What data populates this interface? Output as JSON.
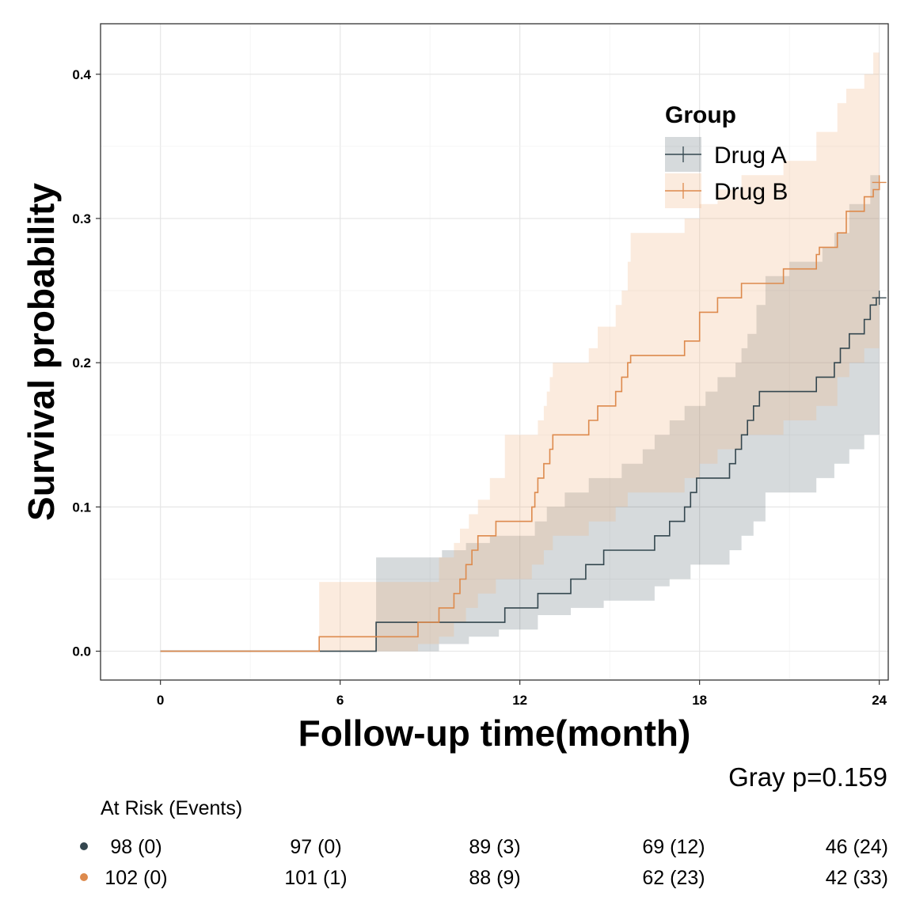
{
  "chart_data": {
    "type": "line",
    "xlabel": "Follow-up time(month)",
    "ylabel": "Survival probability",
    "xlim": [
      -2,
      24.3
    ],
    "ylim": [
      -0.02,
      0.435
    ],
    "x_ticks": [
      0,
      6,
      12,
      18,
      24
    ],
    "y_ticks": [
      0.0,
      0.1,
      0.2,
      0.3,
      0.4
    ],
    "y_tick_labels": [
      "0.0",
      "0.1",
      "0.2",
      "0.3",
      "0.4"
    ],
    "grid": true,
    "legend": {
      "title": "Group",
      "position": "top-right",
      "entries": [
        "Drug A",
        "Drug B"
      ]
    },
    "annotation": "Gray p=0.159",
    "series": [
      {
        "name": "Drug A",
        "color": "#34474F",
        "band_color": "#34474F",
        "steps": [
          [
            0,
            0
          ],
          [
            7.2,
            0.02
          ],
          [
            11.5,
            0.03
          ],
          [
            12.6,
            0.04
          ],
          [
            13.7,
            0.05
          ],
          [
            14.2,
            0.06
          ],
          [
            14.8,
            0.07
          ],
          [
            16.5,
            0.08
          ],
          [
            17.0,
            0.09
          ],
          [
            17.5,
            0.1
          ],
          [
            17.7,
            0.11
          ],
          [
            17.9,
            0.12
          ],
          [
            19.0,
            0.13
          ],
          [
            19.2,
            0.14
          ],
          [
            19.4,
            0.15
          ],
          [
            19.6,
            0.16
          ],
          [
            19.8,
            0.17
          ],
          [
            20.0,
            0.18
          ],
          [
            21.9,
            0.19
          ],
          [
            22.5,
            0.2
          ],
          [
            22.7,
            0.21
          ],
          [
            23.0,
            0.22
          ],
          [
            23.5,
            0.23
          ],
          [
            23.7,
            0.24
          ],
          [
            23.9,
            0.245
          ],
          [
            24.0,
            0.245
          ]
        ],
        "lower": [
          [
            0,
            0
          ],
          [
            7.2,
            0.0
          ],
          [
            9.3,
            0.005
          ],
          [
            10.3,
            0.01
          ],
          [
            11.3,
            0.015
          ],
          [
            12.6,
            0.025
          ],
          [
            13.7,
            0.03
          ],
          [
            14.8,
            0.035
          ],
          [
            16.5,
            0.045
          ],
          [
            17.0,
            0.05
          ],
          [
            17.7,
            0.06
          ],
          [
            19.0,
            0.07
          ],
          [
            19.4,
            0.08
          ],
          [
            19.8,
            0.09
          ],
          [
            20.2,
            0.11
          ],
          [
            21.9,
            0.12
          ],
          [
            22.5,
            0.13
          ],
          [
            23.0,
            0.14
          ],
          [
            23.5,
            0.15
          ],
          [
            24.0,
            0.16
          ]
        ],
        "upper": [
          [
            0,
            0
          ],
          [
            7.2,
            0.065
          ],
          [
            8.6,
            0.065
          ],
          [
            9.4,
            0.07
          ],
          [
            10.2,
            0.075
          ],
          [
            11.0,
            0.08
          ],
          [
            12.5,
            0.09
          ],
          [
            12.9,
            0.1
          ],
          [
            13.5,
            0.11
          ],
          [
            14.3,
            0.12
          ],
          [
            15.4,
            0.13
          ],
          [
            16.1,
            0.14
          ],
          [
            16.5,
            0.15
          ],
          [
            17.0,
            0.16
          ],
          [
            17.5,
            0.17
          ],
          [
            18.2,
            0.18
          ],
          [
            18.6,
            0.19
          ],
          [
            19.2,
            0.2
          ],
          [
            19.4,
            0.21
          ],
          [
            19.6,
            0.22
          ],
          [
            19.9,
            0.24
          ],
          [
            20.2,
            0.26
          ],
          [
            21.0,
            0.27
          ],
          [
            22.1,
            0.28
          ],
          [
            22.5,
            0.29
          ],
          [
            23.0,
            0.31
          ],
          [
            23.7,
            0.33
          ],
          [
            24.0,
            0.335
          ]
        ]
      },
      {
        "name": "Drug B",
        "color": "#DD8A4D",
        "band_color": "#EFB68A",
        "steps": [
          [
            0,
            0
          ],
          [
            5.3,
            0.01
          ],
          [
            7.2,
            0.01
          ],
          [
            8.6,
            0.02
          ],
          [
            9.3,
            0.03
          ],
          [
            9.8,
            0.04
          ],
          [
            10.0,
            0.05
          ],
          [
            10.2,
            0.06
          ],
          [
            10.4,
            0.07
          ],
          [
            10.6,
            0.08
          ],
          [
            11.2,
            0.09
          ],
          [
            12.4,
            0.1
          ],
          [
            12.5,
            0.11
          ],
          [
            12.6,
            0.12
          ],
          [
            12.8,
            0.13
          ],
          [
            13.0,
            0.14
          ],
          [
            13.1,
            0.15
          ],
          [
            14.3,
            0.16
          ],
          [
            14.6,
            0.17
          ],
          [
            15.2,
            0.18
          ],
          [
            15.4,
            0.19
          ],
          [
            15.6,
            0.2
          ],
          [
            15.7,
            0.205
          ],
          [
            17.5,
            0.215
          ],
          [
            18.0,
            0.235
          ],
          [
            18.6,
            0.245
          ],
          [
            19.4,
            0.255
          ],
          [
            20.8,
            0.265
          ],
          [
            21.9,
            0.275
          ],
          [
            22.0,
            0.28
          ],
          [
            22.6,
            0.29
          ],
          [
            22.9,
            0.305
          ],
          [
            23.5,
            0.315
          ],
          [
            23.8,
            0.32
          ],
          [
            24.0,
            0.325
          ]
        ],
        "lower": [
          [
            0,
            0
          ],
          [
            5.3,
            0.0
          ],
          [
            7.5,
            0.0
          ],
          [
            8.6,
            0.005
          ],
          [
            9.3,
            0.01
          ],
          [
            9.8,
            0.02
          ],
          [
            10.2,
            0.03
          ],
          [
            10.6,
            0.04
          ],
          [
            11.2,
            0.05
          ],
          [
            12.4,
            0.06
          ],
          [
            12.8,
            0.07
          ],
          [
            13.1,
            0.08
          ],
          [
            14.3,
            0.09
          ],
          [
            15.2,
            0.1
          ],
          [
            15.6,
            0.11
          ],
          [
            17.5,
            0.12
          ],
          [
            18.0,
            0.13
          ],
          [
            18.6,
            0.14
          ],
          [
            19.4,
            0.15
          ],
          [
            20.8,
            0.16
          ],
          [
            21.9,
            0.17
          ],
          [
            22.6,
            0.19
          ],
          [
            23.0,
            0.2
          ],
          [
            23.5,
            0.21
          ],
          [
            24.0,
            0.22
          ]
        ],
        "upper": [
          [
            0,
            0
          ],
          [
            5.3,
            0.048
          ],
          [
            9.3,
            0.065
          ],
          [
            9.8,
            0.075
          ],
          [
            10.0,
            0.085
          ],
          [
            10.3,
            0.095
          ],
          [
            10.6,
            0.105
          ],
          [
            11.0,
            0.12
          ],
          [
            11.5,
            0.15
          ],
          [
            12.4,
            0.15
          ],
          [
            12.6,
            0.16
          ],
          [
            12.8,
            0.17
          ],
          [
            12.9,
            0.18
          ],
          [
            13.0,
            0.19
          ],
          [
            13.1,
            0.2
          ],
          [
            14.3,
            0.21
          ],
          [
            14.6,
            0.225
          ],
          [
            15.2,
            0.24
          ],
          [
            15.4,
            0.25
          ],
          [
            15.6,
            0.27
          ],
          [
            15.7,
            0.29
          ],
          [
            17.5,
            0.3
          ],
          [
            18.0,
            0.31
          ],
          [
            18.6,
            0.32
          ],
          [
            19.4,
            0.33
          ],
          [
            20.8,
            0.34
          ],
          [
            21.9,
            0.36
          ],
          [
            22.6,
            0.38
          ],
          [
            22.9,
            0.39
          ],
          [
            23.5,
            0.4
          ],
          [
            23.8,
            0.415
          ],
          [
            24.0,
            0.415
          ]
        ]
      }
    ],
    "risk_table": {
      "title": "At Risk (Events)",
      "times": [
        0,
        6,
        12,
        18,
        24
      ],
      "rows": [
        {
          "group": "Drug A",
          "color": "#34474F",
          "cells": [
            "98 (0)",
            "97 (0)",
            "89 (3)",
            "69 (12)",
            "46 (24)"
          ]
        },
        {
          "group": "Drug B",
          "color": "#DD8A4D",
          "cells": [
            "102 (0)",
            "101 (1)",
            "88 (9)",
            "62 (23)",
            "42 (33)"
          ]
        }
      ]
    }
  }
}
